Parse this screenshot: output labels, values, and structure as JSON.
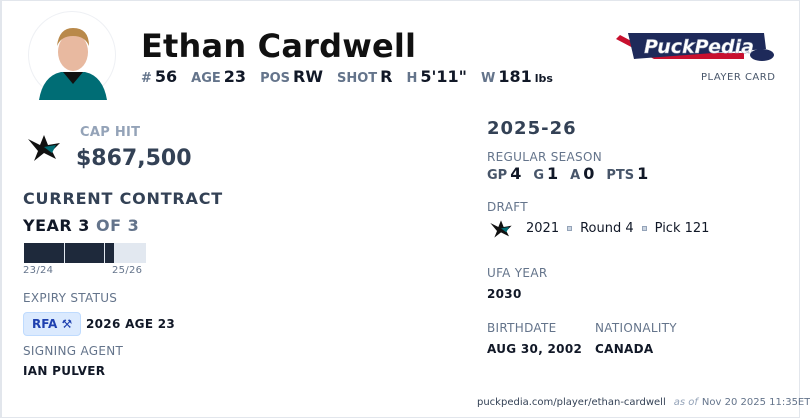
{
  "player": {
    "name": "Ethan Cardwell",
    "number_label": "#",
    "number": "56",
    "age_label": "AGE",
    "age": "23",
    "pos_label": "POS",
    "pos": "RW",
    "shot_label": "SHOT",
    "shot": "R",
    "height_label": "H",
    "height": "5'11\"",
    "weight_label": "W",
    "weight": "181",
    "weight_unit": "lbs"
  },
  "brand": {
    "logo_text": "PuckPedia",
    "subtitle": "PLAYER CARD"
  },
  "contract": {
    "cap_hit_label": "CAP HIT",
    "cap_hit": "$867,500",
    "current_label": "CURRENT CONTRACT",
    "year_label": "YEAR 3",
    "of_label": "OF 3",
    "progress_years_elapsed": 2.25,
    "total_years": 3,
    "start_label": "23/24",
    "end_label": "25/26",
    "expiry_label": "EXPIRY STATUS",
    "expiry_badge": "RFA",
    "expiry_detail": "2026 AGE 23",
    "agent_label": "SIGNING AGENT",
    "agent": "IAN PULVER"
  },
  "season": {
    "title": "2025-26",
    "regular_label": "REGULAR SEASON",
    "gp_label": "GP",
    "gp": "4",
    "g_label": "G",
    "g": "1",
    "a_label": "A",
    "a": "0",
    "pts_label": "PTS",
    "pts": "1"
  },
  "draft": {
    "label": "DRAFT",
    "year": "2021",
    "round": "Round 4",
    "pick": "Pick 121"
  },
  "ufa": {
    "label": "UFA YEAR",
    "value": "2030"
  },
  "bio": {
    "birth_label": "BIRTHDATE",
    "birth": "AUG 30, 2002",
    "nat_label": "NATIONALITY",
    "nat": "CANADA"
  },
  "footer": {
    "url": "puckpedia.com/player/ethan-cardwell",
    "as_of": "as of",
    "date": "Nov 20 2025 11:35ET"
  },
  "colors": {
    "team_teal": "#006d75",
    "navy": "#1e293b",
    "rfa_bg": "#dbeafe",
    "rfa_text": "#1e40af"
  }
}
